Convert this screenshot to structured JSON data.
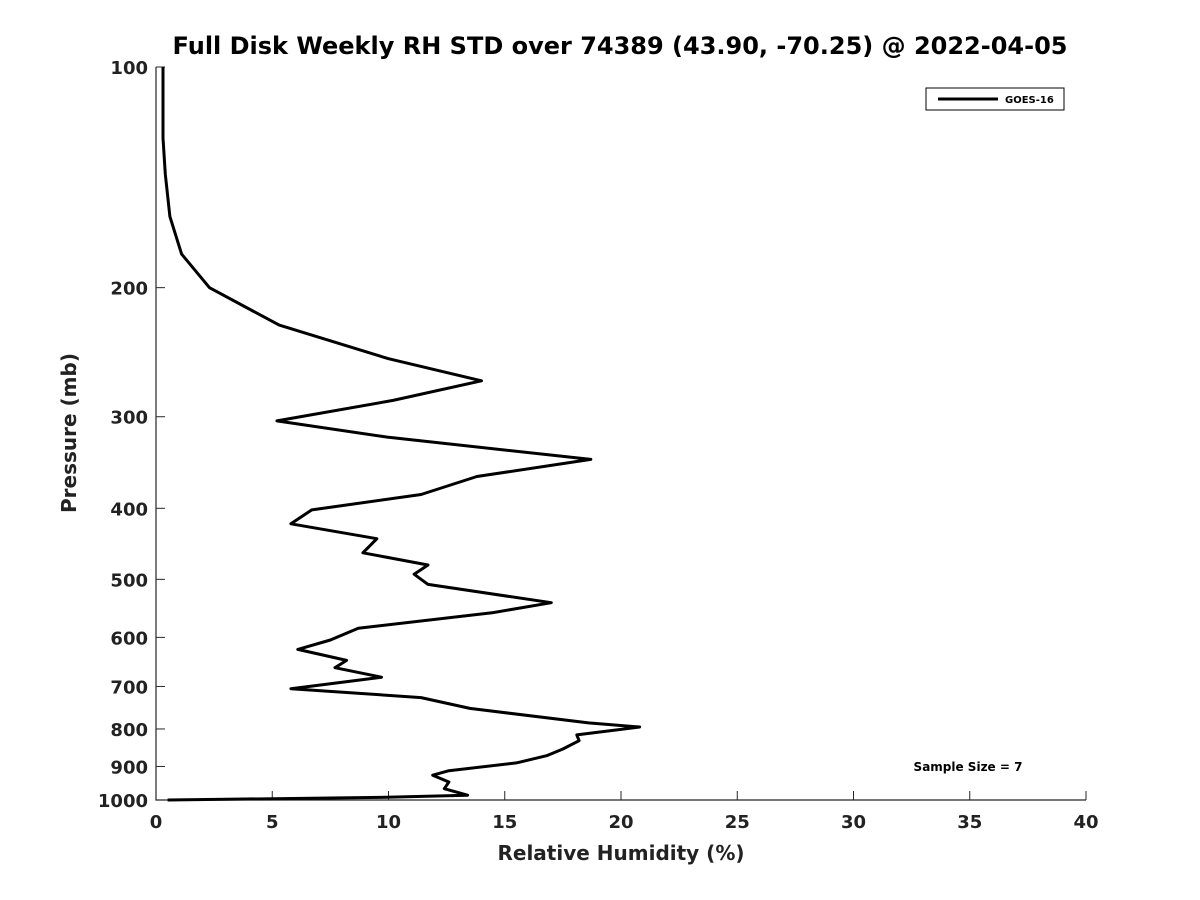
{
  "chart_data": {
    "type": "line",
    "title": "Full Disk Weekly RH STD over 74389 (43.90, -70.25) @ 2022-04-05",
    "xlabel": "Relative Humidity (%)",
    "ylabel": "Pressure (mb)",
    "xlim": [
      0,
      40
    ],
    "ylim": [
      1000,
      100
    ],
    "yscale": "log",
    "y_reversed": true,
    "xticks": [
      0,
      5,
      10,
      15,
      20,
      25,
      30,
      35,
      40
    ],
    "yticks": [
      100,
      200,
      300,
      400,
      500,
      600,
      700,
      800,
      900,
      1000
    ],
    "grid": false,
    "legend": {
      "placement": "top-right",
      "entries": [
        "GOES-16"
      ]
    },
    "annotation": "Sample Size = 7",
    "series": [
      {
        "name": "GOES-16",
        "color": "#000000",
        "points": [
          [
            0.3,
            100
          ],
          [
            0.3,
            110
          ],
          [
            0.3,
            125
          ],
          [
            0.4,
            140
          ],
          [
            0.6,
            160
          ],
          [
            1.1,
            180
          ],
          [
            2.3,
            200
          ],
          [
            5.3,
            225
          ],
          [
            10.0,
            250
          ],
          [
            14.0,
            268
          ],
          [
            10.2,
            285
          ],
          [
            5.2,
            304
          ],
          [
            10.0,
            320
          ],
          [
            18.7,
            343
          ],
          [
            13.8,
            362
          ],
          [
            11.4,
            383
          ],
          [
            6.7,
            402
          ],
          [
            5.8,
            420
          ],
          [
            9.5,
            440
          ],
          [
            8.9,
            460
          ],
          [
            11.7,
            478
          ],
          [
            11.1,
            492
          ],
          [
            11.7,
            508
          ],
          [
            17.0,
            538
          ],
          [
            14.5,
            555
          ],
          [
            8.7,
            583
          ],
          [
            7.5,
            605
          ],
          [
            6.1,
            623
          ],
          [
            8.2,
            645
          ],
          [
            7.7,
            660
          ],
          [
            9.7,
            680
          ],
          [
            5.8,
            705
          ],
          [
            11.4,
            725
          ],
          [
            13.5,
            750
          ],
          [
            18.6,
            785
          ],
          [
            20.8,
            795
          ],
          [
            18.1,
            815
          ],
          [
            18.2,
            830
          ],
          [
            17.5,
            852
          ],
          [
            16.8,
            870
          ],
          [
            15.5,
            890
          ],
          [
            12.6,
            912
          ],
          [
            11.9,
            925
          ],
          [
            12.6,
            945
          ],
          [
            12.4,
            965
          ],
          [
            13.4,
            985
          ],
          [
            9.6,
            992
          ],
          [
            0.5,
            1000
          ]
        ]
      }
    ]
  }
}
